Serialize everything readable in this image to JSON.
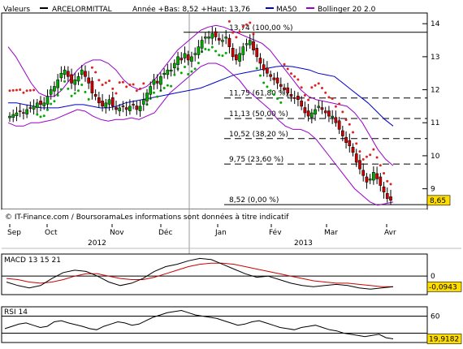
{
  "header": {
    "valeurs_label": "Valeurs",
    "instrument": "ARCELORMITTAL",
    "year_stats": "Année +Bas: 8,52 +Haut: 13,76",
    "ma_legend": "MA50",
    "bb_legend": "Bollinger 20 2.0"
  },
  "colors": {
    "up_candle": "#00aa00",
    "down_candle": "#cc0000",
    "ma50": "#0000cc",
    "bollinger": "#9900cc",
    "sar_up": "#00aa00",
    "sar_down": "#dd2222",
    "macd_line": "#000000",
    "macd_signal": "#cc0000",
    "rsi_line": "#000000",
    "last_price_bg": "#ffdd00"
  },
  "footer": {
    "source": "© IT-Finance.com / BoursoramaLes informations sont données à titre indicatif"
  },
  "chart_data": [
    {
      "type": "candlestick",
      "panel": "price",
      "title": "ARCELORMITTAL",
      "ylim": [
        8.4,
        14.3
      ],
      "y_ticks": [
        9,
        10,
        11,
        12,
        13,
        14
      ],
      "x_month_labels": [
        "Sep",
        "Oct",
        "Nov",
        "Déc",
        "Jan",
        "Fév",
        "Mar",
        "Avr"
      ],
      "x_year_labels": [
        "2012",
        "2013"
      ],
      "last_price": "8,65",
      "fibonacci_levels": [
        {
          "label": "13,74 (100,00 %)",
          "value": 13.74
        },
        {
          "label": "11,75 (61,80 %)",
          "value": 11.75
        },
        {
          "label": "11,13 (50,00 %)",
          "value": 11.13
        },
        {
          "label": "10,52 (38,20 %)",
          "value": 10.52
        },
        {
          "label": "9,75 (23,60 %)",
          "value": 9.75
        },
        {
          "label": "8,52 (0,00 %)",
          "value": 8.52
        }
      ],
      "close_series": [
        11.2,
        11.25,
        11.3,
        11.35,
        11.3,
        11.4,
        11.45,
        11.5,
        11.6,
        11.55,
        11.6,
        11.8,
        12.0,
        12.1,
        12.3,
        12.5,
        12.6,
        12.4,
        12.2,
        12.3,
        12.4,
        12.6,
        12.4,
        12.2,
        11.9,
        11.8,
        11.6,
        11.5,
        11.6,
        11.7,
        11.5,
        11.4,
        11.45,
        11.5,
        11.4,
        11.5,
        11.55,
        11.4,
        11.5,
        11.7,
        11.9,
        12.1,
        12.3,
        12.2,
        12.4,
        12.5,
        12.6,
        12.6,
        12.8,
        13.0,
        12.9,
        13.1,
        12.9,
        13.0,
        13.1,
        13.3,
        13.5,
        13.6,
        13.6,
        13.7,
        13.6,
        13.5,
        13.5,
        13.6,
        13.3,
        13.0,
        12.9,
        13.1,
        13.3,
        13.4,
        13.5,
        13.2,
        13.0,
        12.8,
        12.6,
        12.5,
        12.4,
        12.3,
        12.2,
        12.1,
        12.0,
        11.9,
        11.8,
        11.75,
        11.7,
        11.5,
        11.3,
        11.2,
        11.3,
        11.4,
        11.5,
        11.4,
        11.3,
        11.2,
        11.2,
        11.0,
        10.8,
        10.6,
        10.4,
        10.3,
        10.1,
        9.8,
        9.6,
        9.4,
        9.2,
        9.3,
        9.5,
        9.3,
        9.1,
        8.9,
        8.7,
        8.65
      ],
      "ma50_series": [
        11.6,
        11.6,
        11.55,
        11.5,
        11.45,
        11.45,
        11.45,
        11.5,
        11.55,
        11.55,
        11.5,
        11.45,
        11.45,
        11.5,
        11.6,
        11.65,
        11.7,
        11.75,
        11.8,
        11.85,
        11.9,
        11.95,
        12.0,
        12.05,
        12.15,
        12.25,
        12.35,
        12.45,
        12.5,
        12.55,
        12.6,
        12.65,
        12.7,
        12.72,
        12.7,
        12.65,
        12.6,
        12.5,
        12.45,
        12.4,
        12.2,
        12.0,
        11.8,
        11.6,
        11.35,
        11.1,
        10.9
      ],
      "bb_upper_series": [
        13.3,
        13.0,
        12.6,
        12.2,
        11.9,
        11.8,
        11.8,
        12.0,
        12.3,
        12.6,
        12.8,
        12.9,
        12.9,
        12.8,
        12.6,
        12.3,
        12.1,
        12.0,
        12.1,
        12.3,
        12.6,
        12.9,
        13.2,
        13.4,
        13.6,
        13.8,
        13.9,
        13.95,
        13.9,
        13.8,
        13.7,
        13.6,
        13.5,
        13.4,
        13.2,
        12.9,
        12.6,
        12.3,
        12.0,
        11.8,
        11.7,
        11.65,
        11.6,
        11.55,
        11.5,
        11.3,
        11.0,
        10.6,
        10.2,
        9.9,
        9.7
      ],
      "bb_lower_series": [
        11.0,
        10.9,
        10.9,
        11.0,
        11.0,
        11.05,
        11.1,
        11.2,
        11.3,
        11.4,
        11.35,
        11.2,
        11.1,
        11.05,
        11.1,
        11.1,
        11.15,
        11.1,
        11.2,
        11.3,
        11.6,
        11.9,
        12.1,
        12.3,
        12.5,
        12.7,
        12.8,
        12.8,
        12.7,
        12.5,
        12.3,
        12.0,
        11.8,
        11.6,
        11.4,
        11.1,
        10.9,
        10.8,
        10.8,
        10.7,
        10.5,
        10.2,
        9.9,
        9.6,
        9.3,
        9.0,
        8.8,
        8.6,
        8.5,
        8.55,
        8.6
      ]
    },
    {
      "type": "line",
      "panel": "macd",
      "title": "MACD 13 15 21",
      "y_ticks": [
        0
      ],
      "last_value": "-0,0943",
      "series": [
        {
          "name": "MACD",
          "values": [
            -0.05,
            -0.08,
            -0.1,
            -0.08,
            -0.02,
            0.03,
            0.05,
            0.04,
            0.0,
            -0.05,
            -0.08,
            -0.06,
            -0.02,
            0.04,
            0.08,
            0.1,
            0.13,
            0.15,
            0.14,
            0.1,
            0.06,
            0.02,
            -0.01,
            0.0,
            -0.03,
            -0.06,
            -0.08,
            -0.09,
            -0.08,
            -0.07,
            -0.08,
            -0.1,
            -0.11,
            -0.1,
            -0.09
          ]
        },
        {
          "name": "Signal",
          "values": [
            -0.02,
            -0.03,
            -0.05,
            -0.06,
            -0.05,
            -0.03,
            0.0,
            0.02,
            0.02,
            0.0,
            -0.02,
            -0.03,
            -0.03,
            -0.01,
            0.02,
            0.05,
            0.08,
            0.1,
            0.11,
            0.11,
            0.1,
            0.08,
            0.06,
            0.04,
            0.02,
            0.0,
            -0.02,
            -0.04,
            -0.05,
            -0.06,
            -0.06,
            -0.07,
            -0.08,
            -0.09,
            -0.09
          ]
        }
      ]
    },
    {
      "type": "line",
      "panel": "rsi",
      "title": "RSI 14",
      "y_ticks": [
        60
      ],
      "ylim": [
        15,
        75
      ],
      "last_value": "19,9182",
      "series": [
        {
          "name": "RSI",
          "values": [
            38,
            42,
            46,
            48,
            44,
            40,
            42,
            50,
            52,
            48,
            45,
            42,
            38,
            36,
            42,
            46,
            50,
            48,
            44,
            46,
            52,
            58,
            62,
            66,
            68,
            70,
            66,
            62,
            60,
            58,
            56,
            52,
            48,
            44,
            46,
            50,
            52,
            48,
            44,
            40,
            38,
            36,
            40,
            42,
            44,
            40,
            36,
            34,
            30,
            28,
            26,
            24,
            26,
            28,
            22,
            20
          ]
        }
      ]
    }
  ]
}
